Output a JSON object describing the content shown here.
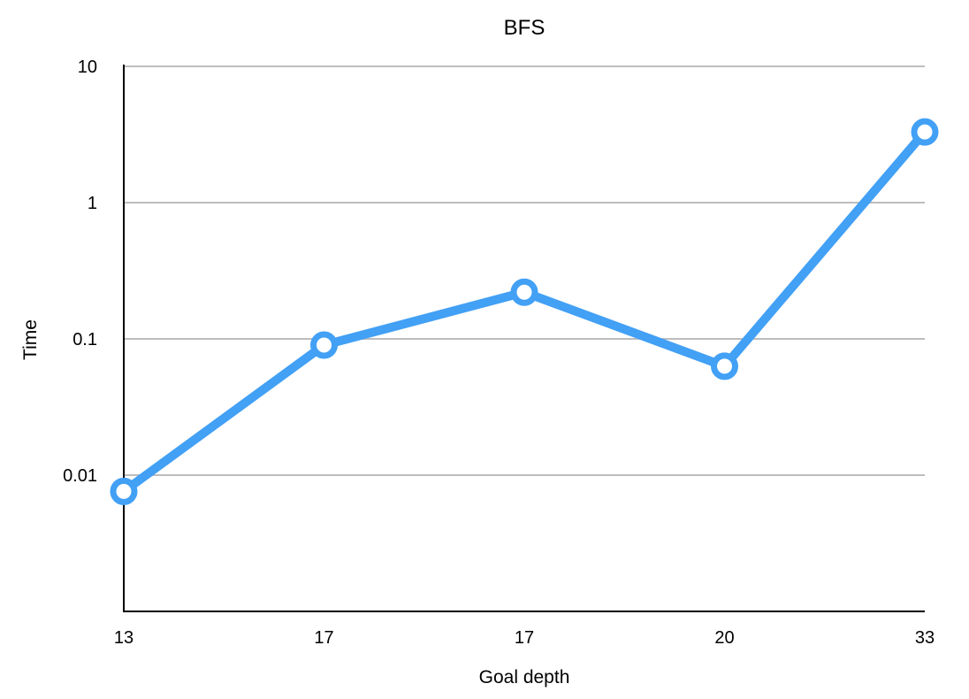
{
  "chart_data": {
    "type": "line",
    "title": "BFS",
    "xlabel": "Goal depth",
    "ylabel": "Time",
    "categories": [
      "13",
      "17",
      "17",
      "20",
      "33"
    ],
    "series": [
      {
        "values": [
          0.0076,
          0.09,
          0.22,
          0.063,
          3.3
        ],
        "color": "#42a0f5"
      }
    ],
    "yscale": "log",
    "ylim": [
      0.001,
      10
    ],
    "yticks": [
      0.01,
      0.1,
      1,
      10
    ],
    "ytick_labels": [
      "0.01",
      "0.1",
      "1",
      "10"
    ],
    "grid": true,
    "legend": "none"
  }
}
